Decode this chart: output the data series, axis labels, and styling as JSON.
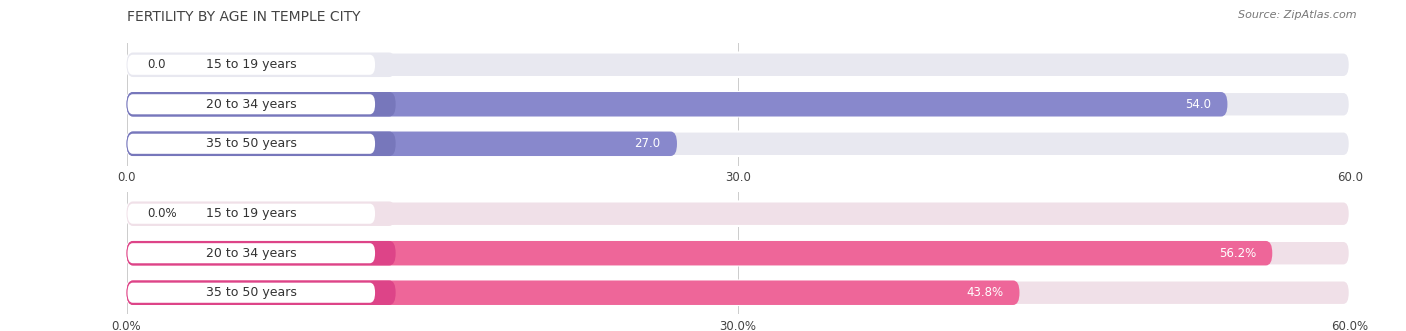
{
  "title": "FERTILITY BY AGE IN TEMPLE CITY",
  "source": "Source: ZipAtlas.com",
  "top_chart": {
    "categories": [
      "15 to 19 years",
      "20 to 34 years",
      "35 to 50 years"
    ],
    "values": [
      0.0,
      54.0,
      27.0
    ],
    "bar_color": "#8888cc",
    "bar_color_dark": "#7777bb",
    "bar_bg_color": "#e8e8f0",
    "xlim": [
      0,
      60
    ],
    "xticks": [
      0.0,
      30.0,
      60.0
    ],
    "xtick_labels": [
      "0.0",
      "30.0",
      "60.0"
    ],
    "value_labels": [
      "0.0",
      "54.0",
      "27.0"
    ]
  },
  "bottom_chart": {
    "categories": [
      "15 to 19 years",
      "20 to 34 years",
      "35 to 50 years"
    ],
    "values": [
      0.0,
      56.2,
      43.8
    ],
    "bar_color": "#ee6699",
    "bar_color_dark": "#dd4488",
    "bar_bg_color": "#f0e0e8",
    "xlim": [
      0,
      60
    ],
    "xticks": [
      0.0,
      30.0,
      60.0
    ],
    "xtick_labels": [
      "0.0%",
      "30.0%",
      "60.0%"
    ],
    "value_labels": [
      "0.0%",
      "56.2%",
      "43.8%"
    ]
  },
  "fig_bg_color": "#ffffff",
  "label_color": "#444444",
  "label_dark_color": "#333333",
  "title_color": "#444444",
  "source_color": "#777777",
  "title_fontsize": 10,
  "label_fontsize": 9,
  "value_fontsize": 8.5,
  "tick_fontsize": 8.5
}
